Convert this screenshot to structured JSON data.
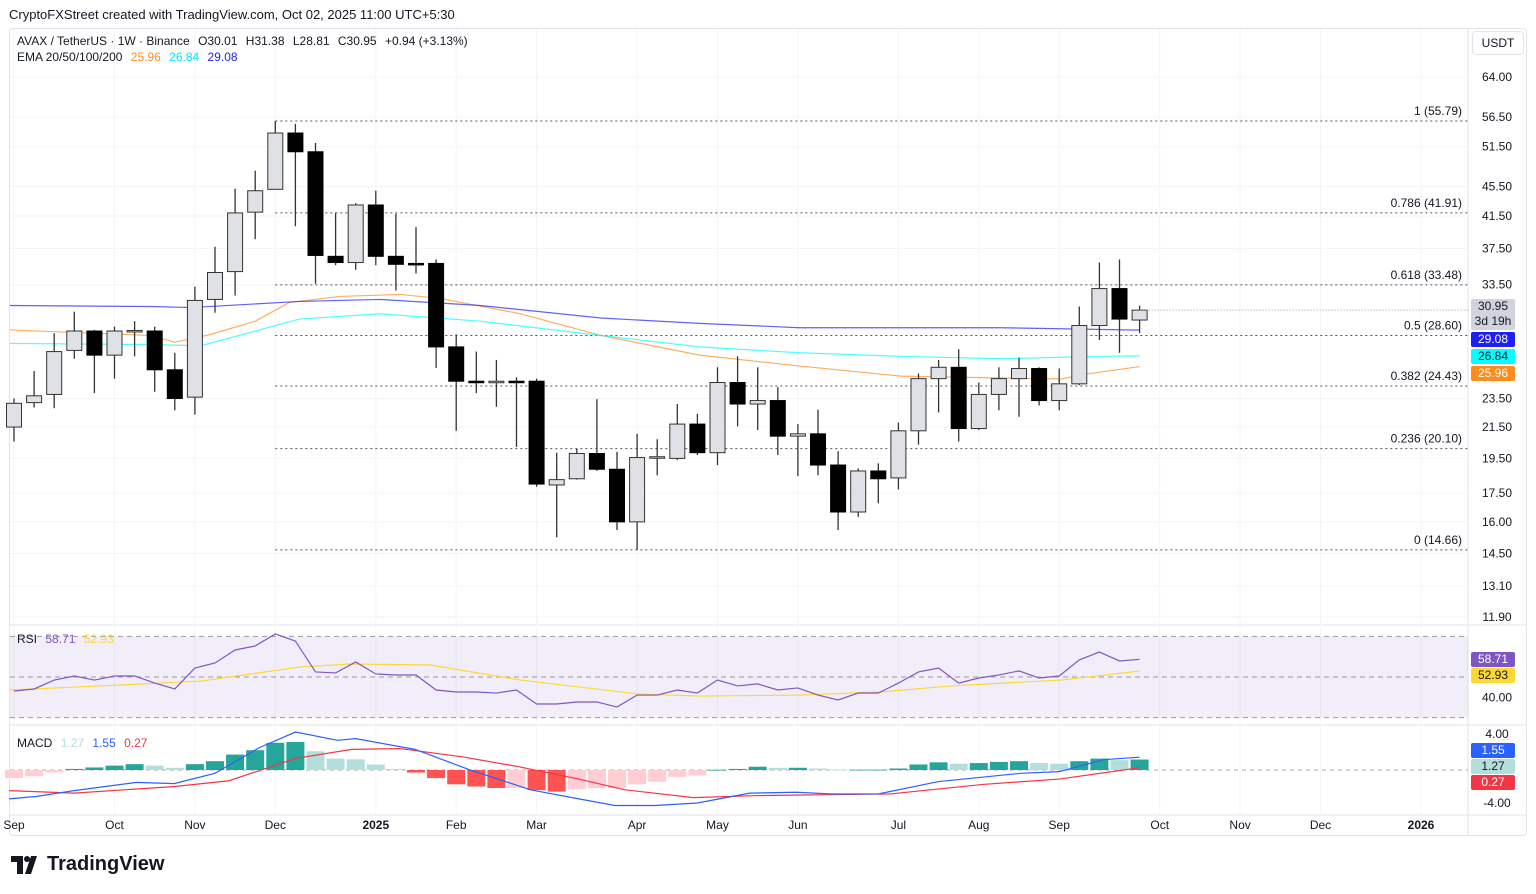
{
  "caption": "CryptoFXStreet created with TradingView.com, Oct 02, 2025 11:00 UTC+5:30",
  "currency_button": "USDT",
  "legend": {
    "symbol": "AVAX / TetherUS · 1W · Binance",
    "open": "O30.01",
    "high": "H31.38",
    "low": "L28.81",
    "close": "C30.95",
    "change": "+0.94 (+3.13%)",
    "ema_label": "EMA 20/50/100/200",
    "ema20": "25.96",
    "ema50": "26.84",
    "ema200": "29.08"
  },
  "badges": {
    "price": "30.95",
    "countdown": "3d 19h",
    "ema200": "29.08",
    "ema50": "26.84",
    "ema20": "25.96",
    "rsi": "58.71",
    "rsi_ma": "52.93",
    "macd": "1.55",
    "hist": "1.27",
    "signal": "0.27"
  },
  "rsi_legend": {
    "label": "RSI",
    "rsi": "58.71",
    "ma": "52.93"
  },
  "macd_legend": {
    "label": "MACD",
    "hist": "1.27",
    "macd": "1.55",
    "signal": "0.27"
  },
  "logo_text": "TradingView",
  "colors": {
    "up_fill": "#e0e1e6",
    "down_fill": "#000000",
    "ema20": "#ff8c1a",
    "ema50": "#00ffff",
    "ema200": "#1e1ef5",
    "rsi": "#7e57c2",
    "rsi_ma": "#fdd835",
    "macd": "#2962ff",
    "signal": "#f23645",
    "hist_up": "#26a69a",
    "hist_up_light": "#b2dfdb",
    "hist_down": "#ff5252",
    "hist_down_light": "#ffcdd2"
  },
  "chart_data": [
    {
      "type": "candlestick",
      "title": "AVAX / TetherUS 1W",
      "scale": "log",
      "ylim": [
        11.9,
        64
      ],
      "y_ticks": [
        "64.00",
        "56.50",
        "51.50",
        "45.50",
        "41.50",
        "37.50",
        "33.50",
        "23.50",
        "21.50",
        "19.50",
        "17.50",
        "16.00",
        "14.50",
        "13.10",
        "11.90"
      ],
      "x_ticks": [
        {
          "label": "Sep",
          "week": 0
        },
        {
          "label": "Oct",
          "week": 5
        },
        {
          "label": "Nov",
          "week": 9
        },
        {
          "label": "Dec",
          "week": 13
        },
        {
          "label": "2025",
          "week": 18
        },
        {
          "label": "Feb",
          "week": 22
        },
        {
          "label": "Mar",
          "week": 26
        },
        {
          "label": "Apr",
          "week": 31
        },
        {
          "label": "May",
          "week": 35
        },
        {
          "label": "Jun",
          "week": 39
        },
        {
          "label": "Jul",
          "week": 44
        },
        {
          "label": "Aug",
          "week": 48
        },
        {
          "label": "Sep",
          "week": 52
        },
        {
          "label": "Oct",
          "week": 57
        },
        {
          "label": "Nov",
          "week": 61
        },
        {
          "label": "Dec",
          "week": 65
        },
        {
          "label": "2026",
          "week": 70
        }
      ],
      "ohlc": [
        [
          21.5,
          23.5,
          20.55,
          23.15
        ],
        [
          23.2,
          25.6,
          22.85,
          23.7
        ],
        [
          23.8,
          28.8,
          22.8,
          27.2
        ],
        [
          27.3,
          30.8,
          26.6,
          29.0
        ],
        [
          29.0,
          29.1,
          23.9,
          26.9
        ],
        [
          26.9,
          29.4,
          25.0,
          29.0
        ],
        [
          29.0,
          29.9,
          26.8,
          29.05
        ],
        [
          29.0,
          29.4,
          24.0,
          25.7
        ],
        [
          25.7,
          27.1,
          22.65,
          23.5
        ],
        [
          23.6,
          33.3,
          22.35,
          31.9
        ],
        [
          32.0,
          37.7,
          30.7,
          34.8
        ],
        [
          34.9,
          45.2,
          32.4,
          41.9
        ],
        [
          42.0,
          47.8,
          38.6,
          44.9
        ],
        [
          45.1,
          55.8,
          45.1,
          53.75
        ],
        [
          53.75,
          55.3,
          40.2,
          50.7
        ],
        [
          50.7,
          52.1,
          33.6,
          36.7
        ],
        [
          36.6,
          41.9,
          35.6,
          35.9
        ],
        [
          35.9,
          43.2,
          35.1,
          42.95
        ],
        [
          42.95,
          44.9,
          35.6,
          36.6
        ],
        [
          36.6,
          41.8,
          32.9,
          35.7
        ],
        [
          35.8,
          40.1,
          34.7,
          35.75
        ],
        [
          35.8,
          36.25,
          25.85,
          27.6
        ],
        [
          27.6,
          28.7,
          21.25,
          24.8
        ],
        [
          24.8,
          27.2,
          23.9,
          24.75
        ],
        [
          24.8,
          26.5,
          22.9,
          24.8
        ],
        [
          24.8,
          25.1,
          20.2,
          24.75
        ],
        [
          24.8,
          25.0,
          17.85,
          18.0
        ],
        [
          17.95,
          19.85,
          15.25,
          18.25
        ],
        [
          18.3,
          20.1,
          18.25,
          19.8
        ],
        [
          19.8,
          23.45,
          18.75,
          18.85
        ],
        [
          18.85,
          19.9,
          15.6,
          16.0
        ],
        [
          16.0,
          21.05,
          14.66,
          19.55
        ],
        [
          19.55,
          20.7,
          18.5,
          19.6
        ],
        [
          19.5,
          23.1,
          19.4,
          21.7
        ],
        [
          21.7,
          22.4,
          19.7,
          19.85
        ],
        [
          19.85,
          25.9,
          19.1,
          24.7
        ],
        [
          24.7,
          26.8,
          21.55,
          23.1
        ],
        [
          23.1,
          25.9,
          21.3,
          23.35
        ],
        [
          23.35,
          24.35,
          19.7,
          20.9
        ],
        [
          20.9,
          21.7,
          18.45,
          21.05
        ],
        [
          21.05,
          22.7,
          18.5,
          19.1
        ],
        [
          19.1,
          19.95,
          15.6,
          16.5
        ],
        [
          16.5,
          18.9,
          16.25,
          18.75
        ],
        [
          18.75,
          19.2,
          16.95,
          18.3
        ],
        [
          18.35,
          21.8,
          17.7,
          21.25
        ],
        [
          21.25,
          25.4,
          20.35,
          25.0
        ],
        [
          25.0,
          26.5,
          22.5,
          25.9
        ],
        [
          25.9,
          27.4,
          20.55,
          21.4
        ],
        [
          21.4,
          24.7,
          21.3,
          23.8
        ],
        [
          23.8,
          25.9,
          22.65,
          25.0
        ],
        [
          25.0,
          26.7,
          22.2,
          25.8
        ],
        [
          25.8,
          25.9,
          23.0,
          23.35
        ],
        [
          23.35,
          25.8,
          22.65,
          24.6
        ],
        [
          24.6,
          31.3,
          24.5,
          29.5
        ],
        [
          29.5,
          35.9,
          28.2,
          33.1
        ],
        [
          33.1,
          36.25,
          27.1,
          30.1
        ],
        [
          30.01,
          31.38,
          28.81,
          30.95
        ]
      ],
      "ema": [
        {
          "name": "EMA 20",
          "color": "#ff8c1a",
          "points": [
            [
              -0.2,
              29.1
            ],
            [
              6.8,
              28.6
            ],
            [
              8,
              28.0
            ],
            [
              9.8,
              28.7
            ],
            [
              12,
              29.9
            ],
            [
              13.7,
              31.7
            ],
            [
              16.2,
              32.3
            ],
            [
              19.2,
              32.5
            ],
            [
              21.2,
              32.1
            ],
            [
              25.2,
              30.6
            ],
            [
              29.2,
              28.6
            ],
            [
              34.1,
              26.9
            ],
            [
              39.1,
              26.0
            ],
            [
              44.1,
              25.2
            ],
            [
              49.1,
              25.05
            ],
            [
              52.1,
              24.97
            ],
            [
              53.1,
              25.3
            ],
            [
              56,
              25.96
            ]
          ]
        },
        {
          "name": "EMA 50",
          "color": "#00ffff",
          "points": [
            [
              -0.2,
              27.9
            ],
            [
              6.8,
              27.8
            ],
            [
              9.3,
              27.7
            ],
            [
              14.2,
              30.1
            ],
            [
              18.2,
              30.6
            ],
            [
              23.2,
              29.9
            ],
            [
              29.2,
              28.6
            ],
            [
              34.1,
              27.6
            ],
            [
              39.1,
              27.1
            ],
            [
              44.1,
              26.8
            ],
            [
              49.1,
              26.6
            ],
            [
              54,
              26.8
            ],
            [
              56,
              26.84
            ]
          ]
        },
        {
          "name": "EMA 200",
          "color": "#1e1ef5",
          "points": [
            [
              -0.2,
              31.4
            ],
            [
              6.8,
              31.3
            ],
            [
              8.8,
              31.2
            ],
            [
              14.2,
              31.8
            ],
            [
              18.2,
              32.0
            ],
            [
              23.2,
              31.4
            ],
            [
              29.2,
              30.2
            ],
            [
              34.1,
              29.7
            ],
            [
              39.1,
              29.3
            ],
            [
              44.1,
              29.3
            ],
            [
              49.1,
              29.3
            ],
            [
              56,
              29.08
            ]
          ]
        }
      ],
      "fibonacci": [
        {
          "label": "1 (55.79)",
          "price": 55.79
        },
        {
          "label": "0.786 (41.91)",
          "price": 41.91
        },
        {
          "label": "0.618 (33.48)",
          "price": 33.48
        },
        {
          "label": "0.5 (28.60)",
          "price": 28.6
        },
        {
          "label": "0.382 (24.43)",
          "price": 24.43
        },
        {
          "label": "0.236 (20.10)",
          "price": 20.1
        },
        {
          "label": "0 (14.66)",
          "price": 14.66
        }
      ],
      "fib_start_week": 13
    },
    {
      "type": "line",
      "title": "RSI",
      "ylim": [
        30,
        70
      ],
      "y_ticks": [
        "40.00"
      ],
      "bands": [
        70,
        50,
        30
      ],
      "rsi": [
        43.1,
        44.1,
        48.5,
        50.5,
        48.5,
        50.5,
        50.5,
        47,
        44.1,
        54.4,
        56.9,
        63.3,
        65.3,
        71.2,
        67.7,
        52.5,
        52,
        57.4,
        51.5,
        51,
        51,
        43.6,
        42.6,
        42.6,
        42.1,
        43.6,
        36.7,
        36.7,
        37.7,
        37.7,
        35.2,
        41.1,
        41.1,
        43.6,
        42.1,
        48.5,
        45.6,
        46.6,
        43.6,
        44.6,
        41.1,
        38.7,
        42.1,
        42.1,
        47,
        52.5,
        54.4,
        47,
        49.5,
        51,
        53,
        49.5,
        50.5,
        58.4,
        62.3,
        57.9,
        58.71
      ],
      "rsi_ma": [
        [
          -0.2,
          43.6
        ],
        [
          4.3,
          45.6
        ],
        [
          9.3,
          48
        ],
        [
          14.2,
          54.9
        ],
        [
          16.7,
          56.4
        ],
        [
          20.7,
          55.9
        ],
        [
          25.2,
          48.5
        ],
        [
          31.1,
          41.6
        ],
        [
          34.1,
          40.6
        ],
        [
          39.1,
          41.1
        ],
        [
          43.1,
          42.6
        ],
        [
          46.6,
          45.6
        ],
        [
          52.1,
          48.5
        ],
        [
          56,
          52.93
        ]
      ]
    },
    {
      "type": "bar",
      "title": "MACD",
      "y_ticks": [
        "4.00",
        "-4.00"
      ],
      "histogram": [
        -0.98,
        -0.75,
        -0.3,
        0.13,
        0.31,
        0.53,
        0.71,
        0.53,
        0.27,
        0.71,
        1.07,
        1.87,
        2.4,
        3.3,
        3.4,
        2.27,
        1.38,
        1.29,
        0.67,
        0.13,
        -0.31,
        -0.98,
        -1.73,
        -2.0,
        -2.18,
        -2.18,
        -2.44,
        -2.62,
        -2.31,
        -2.2,
        -2.2,
        -1.73,
        -1.42,
        -0.84,
        -0.67,
        0.02,
        0.13,
        0.4,
        0.27,
        0.27,
        0.18,
        0.04,
        0.04,
        0.04,
        0.18,
        0.67,
        0.93,
        0.76,
        0.84,
        0.98,
        1.07,
        0.84,
        0.76,
        1.07,
        1.38,
        1.2,
        1.27
      ],
      "macd": [
        [
          -0.25,
          -3.5
        ],
        [
          1.14,
          -3.2
        ],
        [
          2.99,
          -2.5
        ],
        [
          6.1,
          -1.5
        ],
        [
          7.96,
          -1.65
        ],
        [
          10,
          -0.4
        ],
        [
          12.2,
          2.7
        ],
        [
          14,
          4.6
        ],
        [
          16.1,
          3.6
        ],
        [
          17,
          3.8
        ],
        [
          19.95,
          2.5
        ],
        [
          22.7,
          0
        ],
        [
          25.7,
          -2.4
        ],
        [
          28.1,
          -3.5
        ],
        [
          29.9,
          -4.3
        ],
        [
          31.9,
          -4.3
        ],
        [
          34,
          -4.0
        ],
        [
          36.6,
          -2.8
        ],
        [
          38.9,
          -2.7
        ],
        [
          40.7,
          -2.9
        ],
        [
          43,
          -2.9
        ],
        [
          46,
          -1.4
        ],
        [
          50.1,
          -0.4
        ],
        [
          52,
          -0.2
        ],
        [
          54.2,
          1.25
        ],
        [
          56,
          1.55
        ]
      ],
      "signal": [
        [
          -0.25,
          -2.5
        ],
        [
          3,
          -2.8
        ],
        [
          8,
          -2.0
        ],
        [
          10.7,
          -1.3
        ],
        [
          14,
          1.4
        ],
        [
          16.8,
          2.5
        ],
        [
          19.2,
          2.6
        ],
        [
          22.3,
          1.6
        ],
        [
          25.1,
          0.4
        ],
        [
          28.1,
          -1.1
        ],
        [
          30.4,
          -2.4
        ],
        [
          33.8,
          -3.35
        ],
        [
          37,
          -3.1
        ],
        [
          43.6,
          -2.9
        ],
        [
          48.2,
          -1.75
        ],
        [
          52,
          -1.1
        ],
        [
          56,
          0.27
        ]
      ]
    }
  ]
}
